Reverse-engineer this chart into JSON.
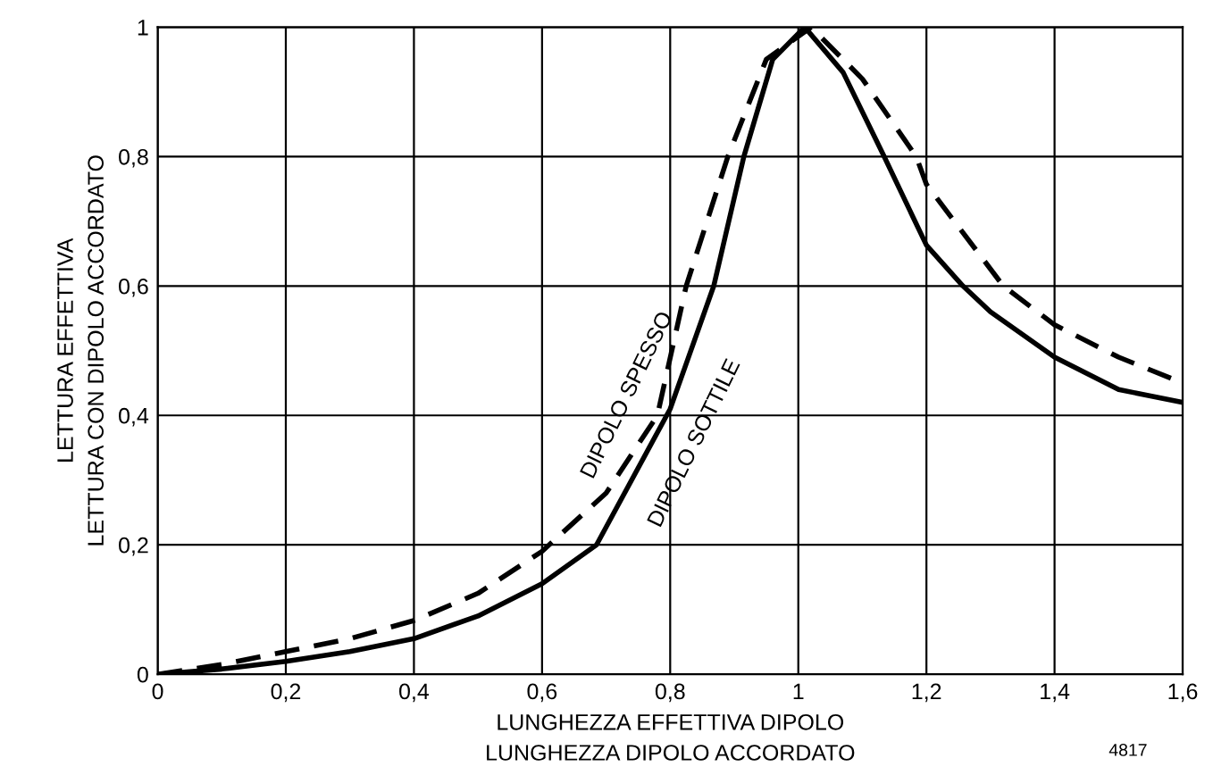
{
  "chart_data": {
    "type": "line",
    "xlabel": "LUNGHEZZA EFFETTIVA DIPOLO\nLUNGHEZZA DIPOLO ACCORDATO",
    "ylabel": "LETTURA EFFETTIVA\nLETTURA CON DIPOLO ACCORDATO",
    "annotations": [
      "4817"
    ],
    "series": [
      {
        "name": "DIPOLO SOTTILE",
        "color": "#000000",
        "line_style": "solid",
        "x": [
          0,
          0.1,
          0.2,
          0.3,
          0.4,
          0.5,
          0.6,
          0.685,
          0.8,
          0.868,
          0.915,
          0.96,
          1.01,
          1.07,
          1.134,
          1.2,
          1.257,
          1.3,
          1.4,
          1.5,
          1.6
        ],
        "values": [
          0,
          0.008,
          0.02,
          0.035,
          0.055,
          0.09,
          0.14,
          0.2,
          0.41,
          0.6,
          0.8,
          0.95,
          1.0,
          0.93,
          0.8,
          0.663,
          0.6,
          0.56,
          0.49,
          0.44,
          0.42
        ]
      },
      {
        "name": "DIPOLO SPESSO",
        "color": "#000000",
        "line_style": "dashed",
        "x": [
          0,
          0.1,
          0.2,
          0.3,
          0.4,
          0.5,
          0.6,
          0.7,
          0.78,
          0.825,
          0.89,
          0.95,
          1.02,
          1.1,
          1.184,
          1.2,
          1.32,
          1.4,
          1.5,
          1.6
        ],
        "values": [
          0,
          0.015,
          0.035,
          0.055,
          0.083,
          0.125,
          0.19,
          0.28,
          0.4,
          0.6,
          0.8,
          0.95,
          1.0,
          0.92,
          0.8,
          0.757,
          0.6,
          0.54,
          0.49,
          0.45
        ]
      }
    ],
    "xlim": [
      0,
      1.6
    ],
    "ylim": [
      0,
      1
    ],
    "xticks": [
      0,
      {
        "value": 0.2,
        "label": "0,2"
      },
      {
        "value": 0.4,
        "label": "0,4"
      },
      {
        "value": 0.6,
        "label": "0,6"
      },
      {
        "value": 0.8,
        "label": "0,8"
      },
      1,
      {
        "value": 1.2,
        "label": "1,2"
      },
      {
        "value": 1.4,
        "label": "1,4"
      },
      {
        "value": 1.6,
        "label": "1,6"
      }
    ],
    "yticks": [
      0,
      {
        "value": 0.2,
        "label": "0,2"
      },
      {
        "value": 0.4,
        "label": "0,4"
      },
      {
        "value": 0.6,
        "label": "0,6"
      },
      {
        "value": 0.8,
        "label": "0,8"
      },
      1
    ],
    "grid": true,
    "legend": false
  }
}
